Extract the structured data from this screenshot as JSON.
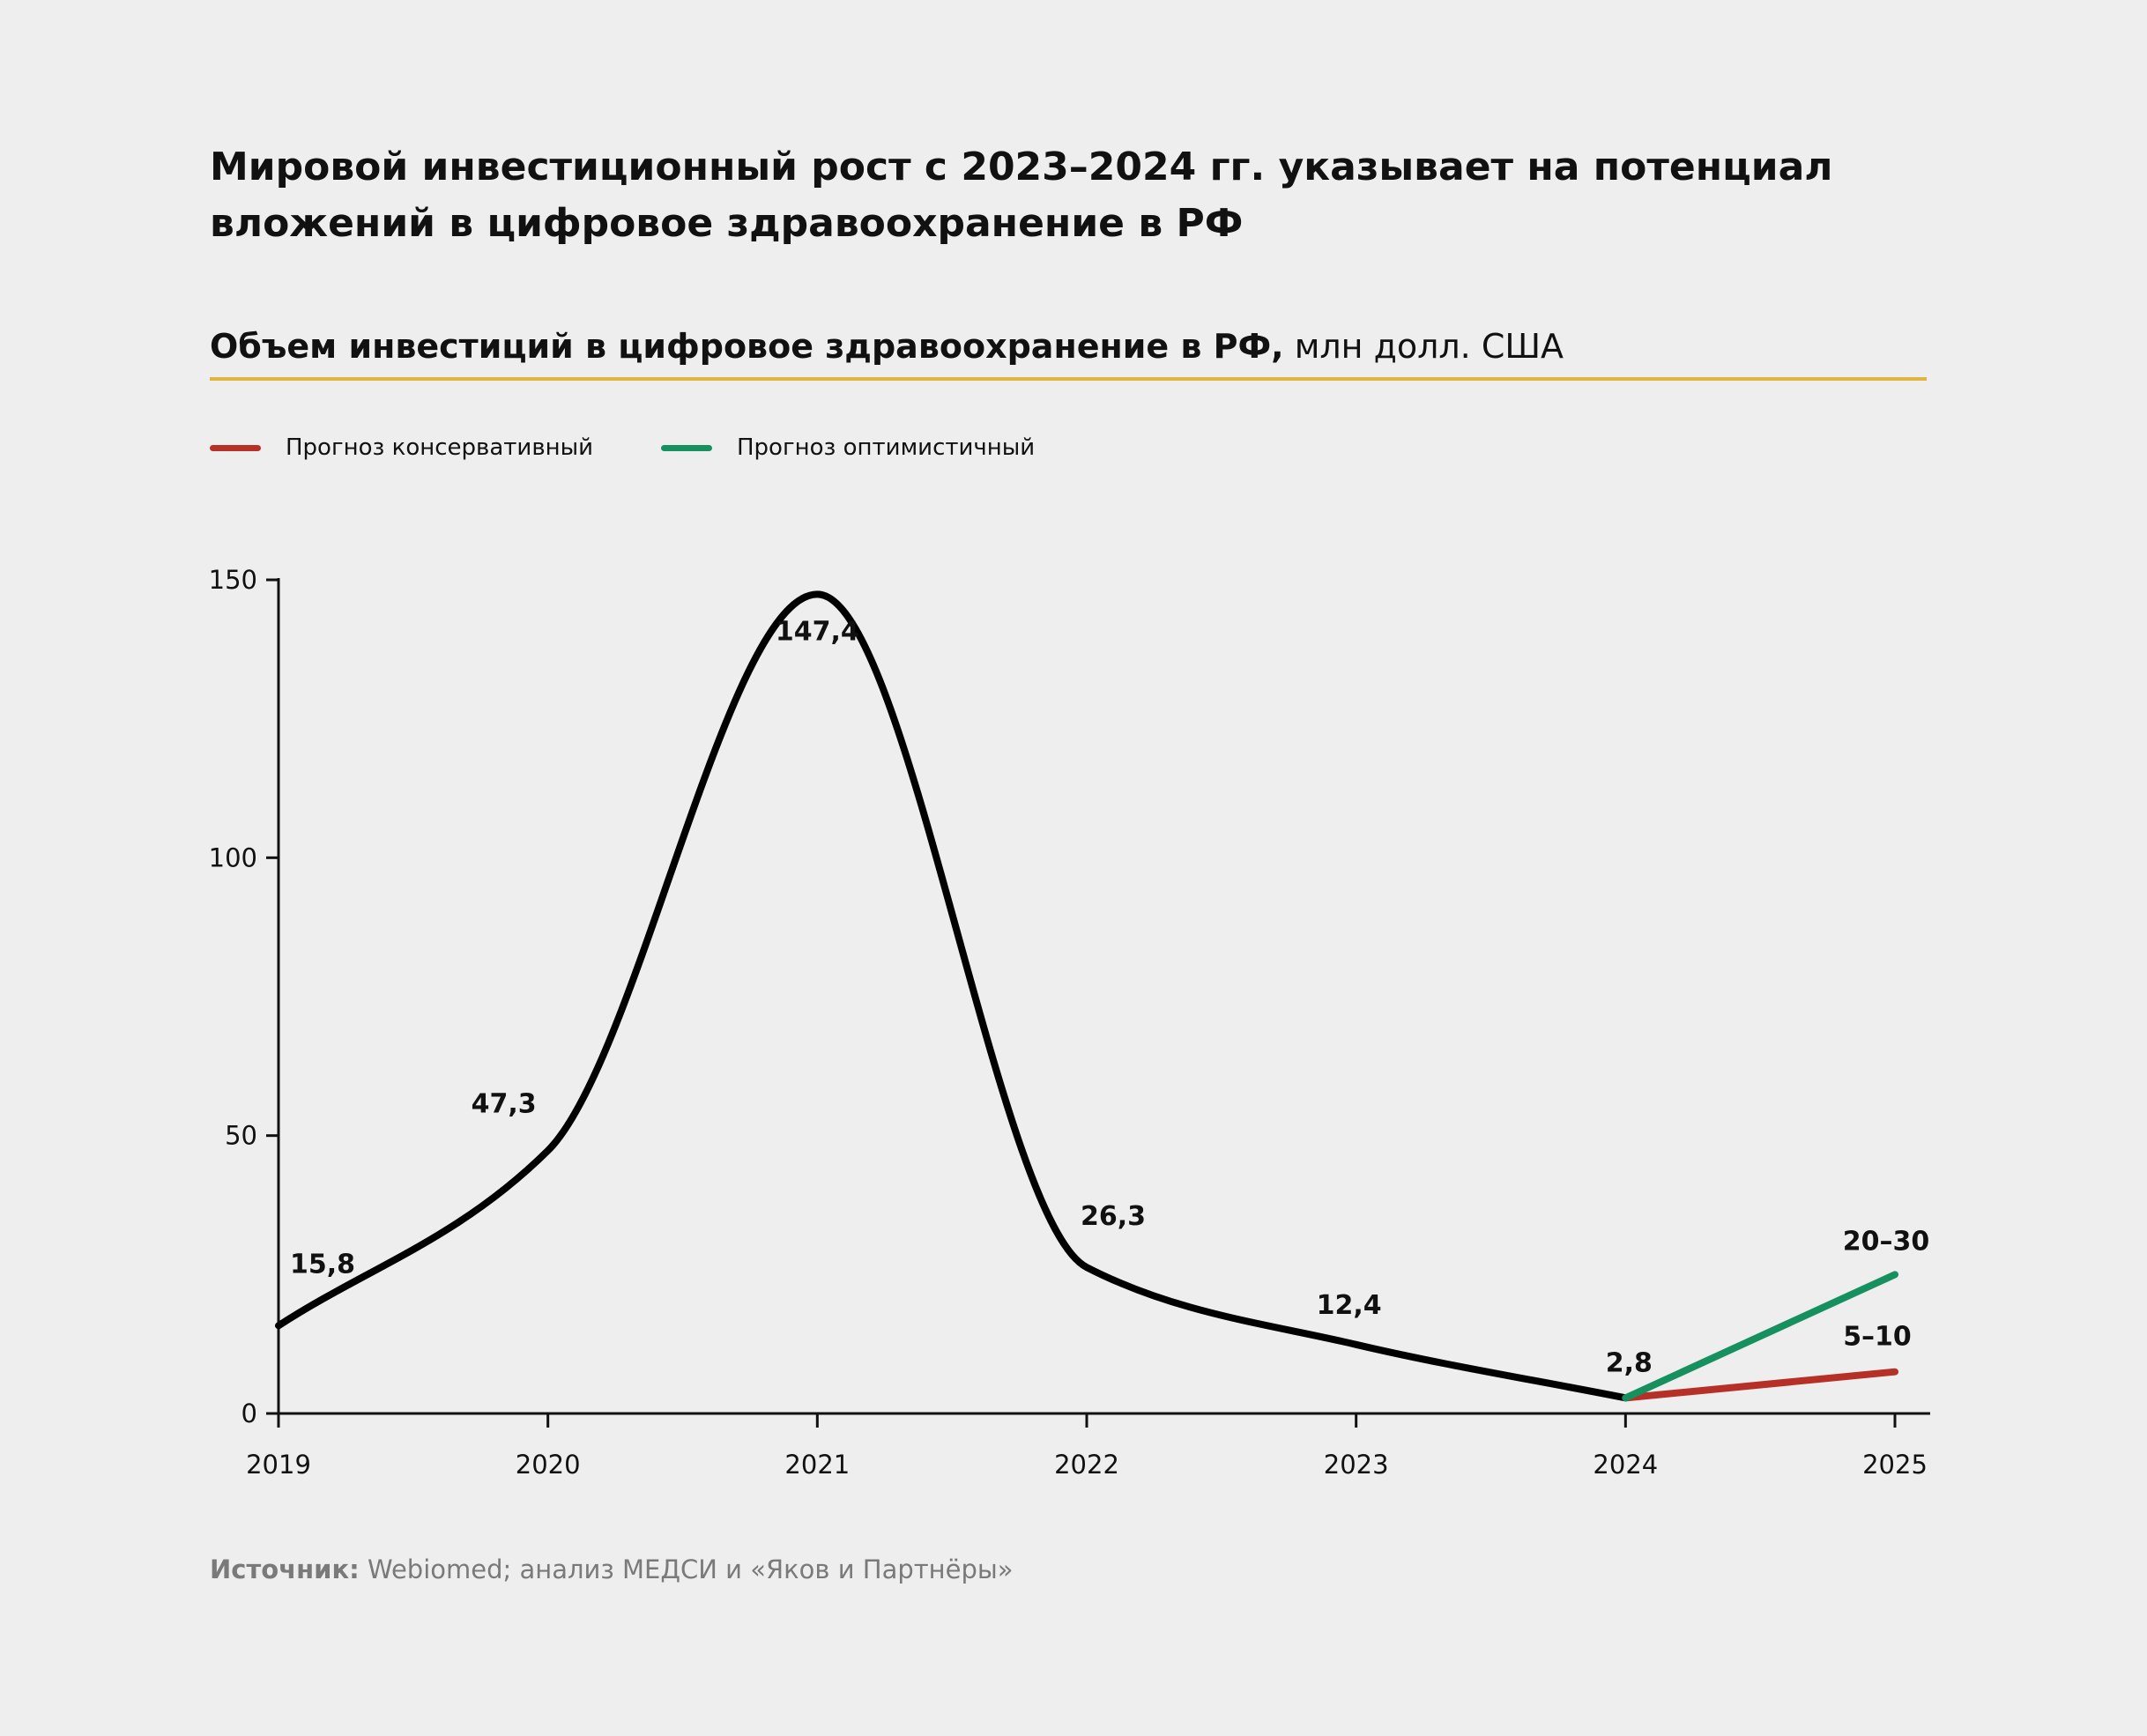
{
  "title": "Мировой инвестиционный рост с 2023–2024 гг. указывает на потенциал вложений в цифровое здравоохранение в РФ",
  "subtitle": {
    "bold": "Объем инвестиций в цифровое здравоохранение в РФ,",
    "regular": " млн долл. США"
  },
  "colors": {
    "background": "#eeeeee",
    "main_line": "#000000",
    "conservative": "#b73027",
    "optimistic": "#15905e",
    "rule": "#e0b43f"
  },
  "source": {
    "label": "Источник:",
    "text": " Webiomed; анализ МЕДСИ и «Яков и Партнёры»"
  },
  "chart_data": {
    "type": "line",
    "x": [
      2019,
      2020,
      2021,
      2022,
      2023,
      2024,
      2025
    ],
    "x_tick_labels": [
      "2019",
      "2020",
      "2021",
      "2022",
      "2023",
      "2024",
      "2025"
    ],
    "y_ticks": [
      0,
      50,
      100,
      150
    ],
    "y_tick_labels": [
      "0",
      "50",
      "100",
      "150"
    ],
    "ylim": [
      0,
      150
    ],
    "xlim": [
      2019,
      2025
    ],
    "legend_position": "top-left",
    "grid": false,
    "series": [
      {
        "key": "actual",
        "color": "#000000",
        "x": [
          2019,
          2020,
          2021,
          2022,
          2023,
          2024
        ],
        "values": [
          15.8,
          47.3,
          147.4,
          26.3,
          12.4,
          2.8
        ],
        "labels": [
          "15,8",
          "47,3",
          "147,4",
          "26,3",
          "12,4",
          "2,8"
        ]
      },
      {
        "key": "conservative",
        "name": "Прогноз консервативный",
        "color": "#b73027",
        "x": [
          2024,
          2025
        ],
        "values": [
          2.8,
          7.5
        ],
        "end_label": "5–10"
      },
      {
        "key": "optimistic",
        "name": "Прогноз оптимистичный",
        "color": "#15905e",
        "x": [
          2024,
          2025
        ],
        "values": [
          2.8,
          25
        ],
        "end_label": "20–30"
      }
    ]
  }
}
